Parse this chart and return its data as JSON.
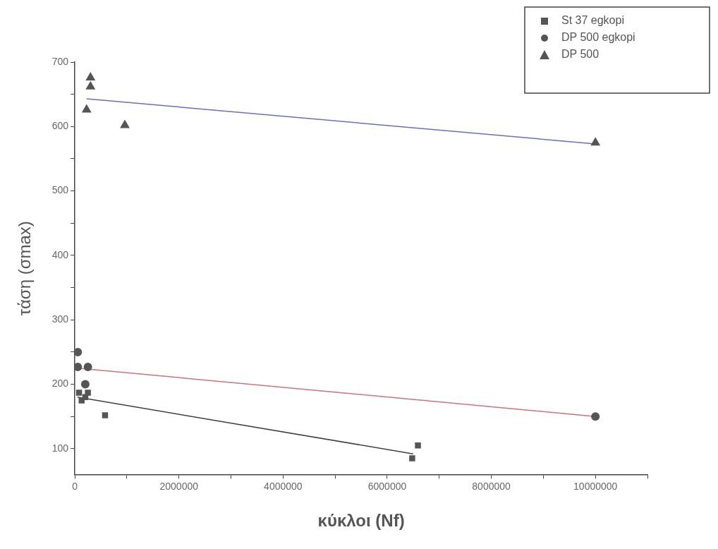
{
  "chart_data": {
    "type": "scatter",
    "xlabel": "κύκλοι (Nf)",
    "ylabel": "τάση (σmax)",
    "xlim": [
      0,
      11000000
    ],
    "xticks": [
      0,
      {
        "value": 1000000,
        "label": null
      },
      2000000,
      {
        "value": 3000000,
        "label": null
      },
      4000000,
      {
        "value": 5000000,
        "label": null
      },
      6000000,
      {
        "value": 7000000,
        "label": null
      },
      8000000,
      {
        "value": 9000000,
        "label": null
      },
      10000000,
      {
        "value": 11000000,
        "label": null
      }
    ],
    "ylim": [
      60,
      700
    ],
    "yticks": [
      100,
      {
        "value": 150,
        "label": null
      },
      200,
      {
        "value": 250,
        "label": null
      },
      300,
      {
        "value": 350,
        "label": null
      },
      400,
      {
        "value": 450,
        "label": null
      },
      500,
      {
        "value": 550,
        "label": null
      },
      600,
      {
        "value": 650,
        "label": null
      },
      700
    ],
    "grid": false,
    "legend": "top right",
    "series": [
      {
        "name": "St 37 egkopi",
        "color": "#555555",
        "marker": "square",
        "x": [
          80000,
          250000,
          130000,
          200000,
          580000,
          6480000,
          6590000
        ],
        "values": [
          187,
          187,
          175,
          180,
          152,
          85,
          105
        ]
      },
      {
        "name": "DP 500 egkopi",
        "color": "#555555",
        "marker": "circle",
        "x": [
          56000,
          56000,
          250000,
          200000,
          10000000
        ],
        "values": [
          250,
          227,
          227,
          200,
          150
        ]
      },
      {
        "name": "DP 500",
        "color": "#555555",
        "marker": "triangle",
        "x": [
          300000,
          300000,
          225000,
          960000,
          10000000
        ],
        "values": [
          676,
          662,
          626,
          602,
          575
        ]
      },
      {
        "type": "line",
        "color": "#404040",
        "marker": "none",
        "x": [
          50000,
          6500000
        ],
        "values": [
          180,
          92
        ]
      },
      {
        "type": "line",
        "color": "#d07080",
        "marker": "none",
        "x": [
          50000,
          10000000
        ],
        "values": [
          225,
          150
        ]
      },
      {
        "type": "line",
        "color": "#6c6cc0",
        "marker": "none",
        "x": [
          225000,
          10000000
        ],
        "values": [
          643,
          573
        ]
      }
    ]
  }
}
